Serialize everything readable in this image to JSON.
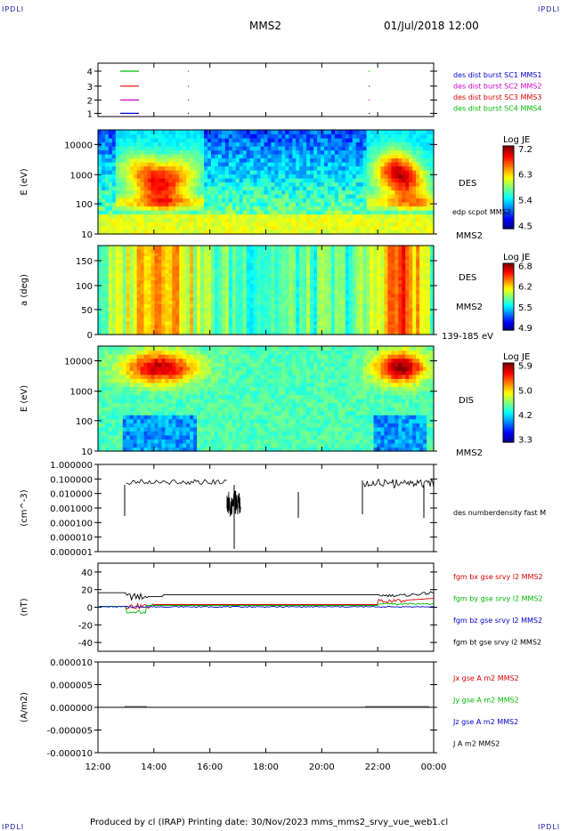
{
  "corners": {
    "tl": "IPDLI",
    "tr": "IPDLI",
    "bl": "IPDLI",
    "br": "IPDLI"
  },
  "header": {
    "spacecraft": "MMS2",
    "datetime": "01/Jul/2018 12:00"
  },
  "footer": {
    "text": "Produced by cl (IRAP)   Printing date: 30/Nov/2023   mms_mms2_srvy_vue_web1.cl"
  },
  "x_axis": {
    "ticks": [
      "12:00",
      "14:00",
      "16:00",
      "18:00",
      "20:00",
      "22:00",
      "00:00"
    ]
  },
  "colors": {
    "black": "#000000",
    "red": "#dd0000",
    "green": "#00bb00",
    "blue": "#0000cc",
    "magenta": "#cc00cc"
  },
  "chart_data": [
    {
      "type": "line",
      "title": "burst availability",
      "yticks": [
        "1",
        "2",
        "3",
        "4"
      ],
      "legend": [
        {
          "label": "des dist burst SC1 MMS1",
          "color": "#0000cc"
        },
        {
          "label": "des dist burst SC2 MMS2",
          "color": "#cc00cc"
        },
        {
          "label": "des dist burst SC3 MMS3",
          "color": "#dd0000"
        },
        {
          "label": "des dist burst SC4 MMS4",
          "color": "#00bb00"
        }
      ]
    },
    {
      "type": "heatmap",
      "ylabel": "E (eV)",
      "yscale": "log",
      "yticks": [
        "10",
        "100",
        "1000",
        "10000"
      ],
      "side_labels": [
        "DES",
        "edp scpot MMS2",
        "MMS2"
      ],
      "colorbar": {
        "title": "Log JE",
        "ticks": [
          "7.2",
          "6.3",
          "5.4",
          "4.5"
        ],
        "range": [
          4.5,
          7.2
        ]
      }
    },
    {
      "type": "heatmap",
      "ylabel": "a (deg)",
      "yticks": [
        "0",
        "50",
        "100",
        "150"
      ],
      "side_labels": [
        "DES",
        "MMS2",
        "139-185 eV"
      ],
      "colorbar": {
        "title": "Log JE",
        "ticks": [
          "6.8",
          "6.2",
          "5.5",
          "4.9"
        ],
        "range": [
          4.9,
          6.8
        ]
      }
    },
    {
      "type": "heatmap",
      "ylabel": "E (eV)",
      "yscale": "log",
      "yticks": [
        "10",
        "100",
        "1000",
        "10000"
      ],
      "side_labels": [
        "DIS",
        "MMS2"
      ],
      "colorbar": {
        "title": "Log JE",
        "ticks": [
          "5.9",
          "5.0",
          "4.2",
          "3.3"
        ],
        "range": [
          3.3,
          5.9
        ]
      }
    },
    {
      "type": "line",
      "ylabel": "(cm^-3)",
      "yscale": "log",
      "yticks": [
        "1.000000",
        "0.100000",
        "0.010000",
        "0.001000",
        "0.000100",
        "0.000010",
        "0.000001"
      ],
      "series": [
        {
          "name": "des numberdensity fast M",
          "color": "#000000"
        }
      ]
    },
    {
      "type": "line",
      "ylabel": "(nT)",
      "yticks": [
        "40",
        "20",
        "0",
        "-20",
        "-40"
      ],
      "ylim": [
        -50,
        50
      ],
      "series": [
        {
          "name": "fgm bx gse srvy l2 MMS2",
          "color": "#dd0000"
        },
        {
          "name": "fgm by gse srvy l2 MMS2",
          "color": "#00bb00"
        },
        {
          "name": "fgm bz gse srvy l2 MMS2",
          "color": "#0000cc"
        },
        {
          "name": "fgm bt gse srvy l2 MMS2",
          "color": "#000000"
        }
      ]
    },
    {
      "type": "line",
      "ylabel": "(A/m2)",
      "yticks": [
        "0.000010",
        "0.000005",
        "0.000000",
        "-0.000005",
        "-0.000010"
      ],
      "ylim": [
        -1e-05,
        1e-05
      ],
      "series": [
        {
          "name": "Jx gse A m2 MMS2",
          "color": "#dd0000"
        },
        {
          "name": "Jy gse A m2 MMS2",
          "color": "#00bb00"
        },
        {
          "name": "Jz gse A m2 MMS2",
          "color": "#0000cc"
        },
        {
          "name": "J A m2 MMS2",
          "color": "#000000"
        }
      ]
    }
  ]
}
